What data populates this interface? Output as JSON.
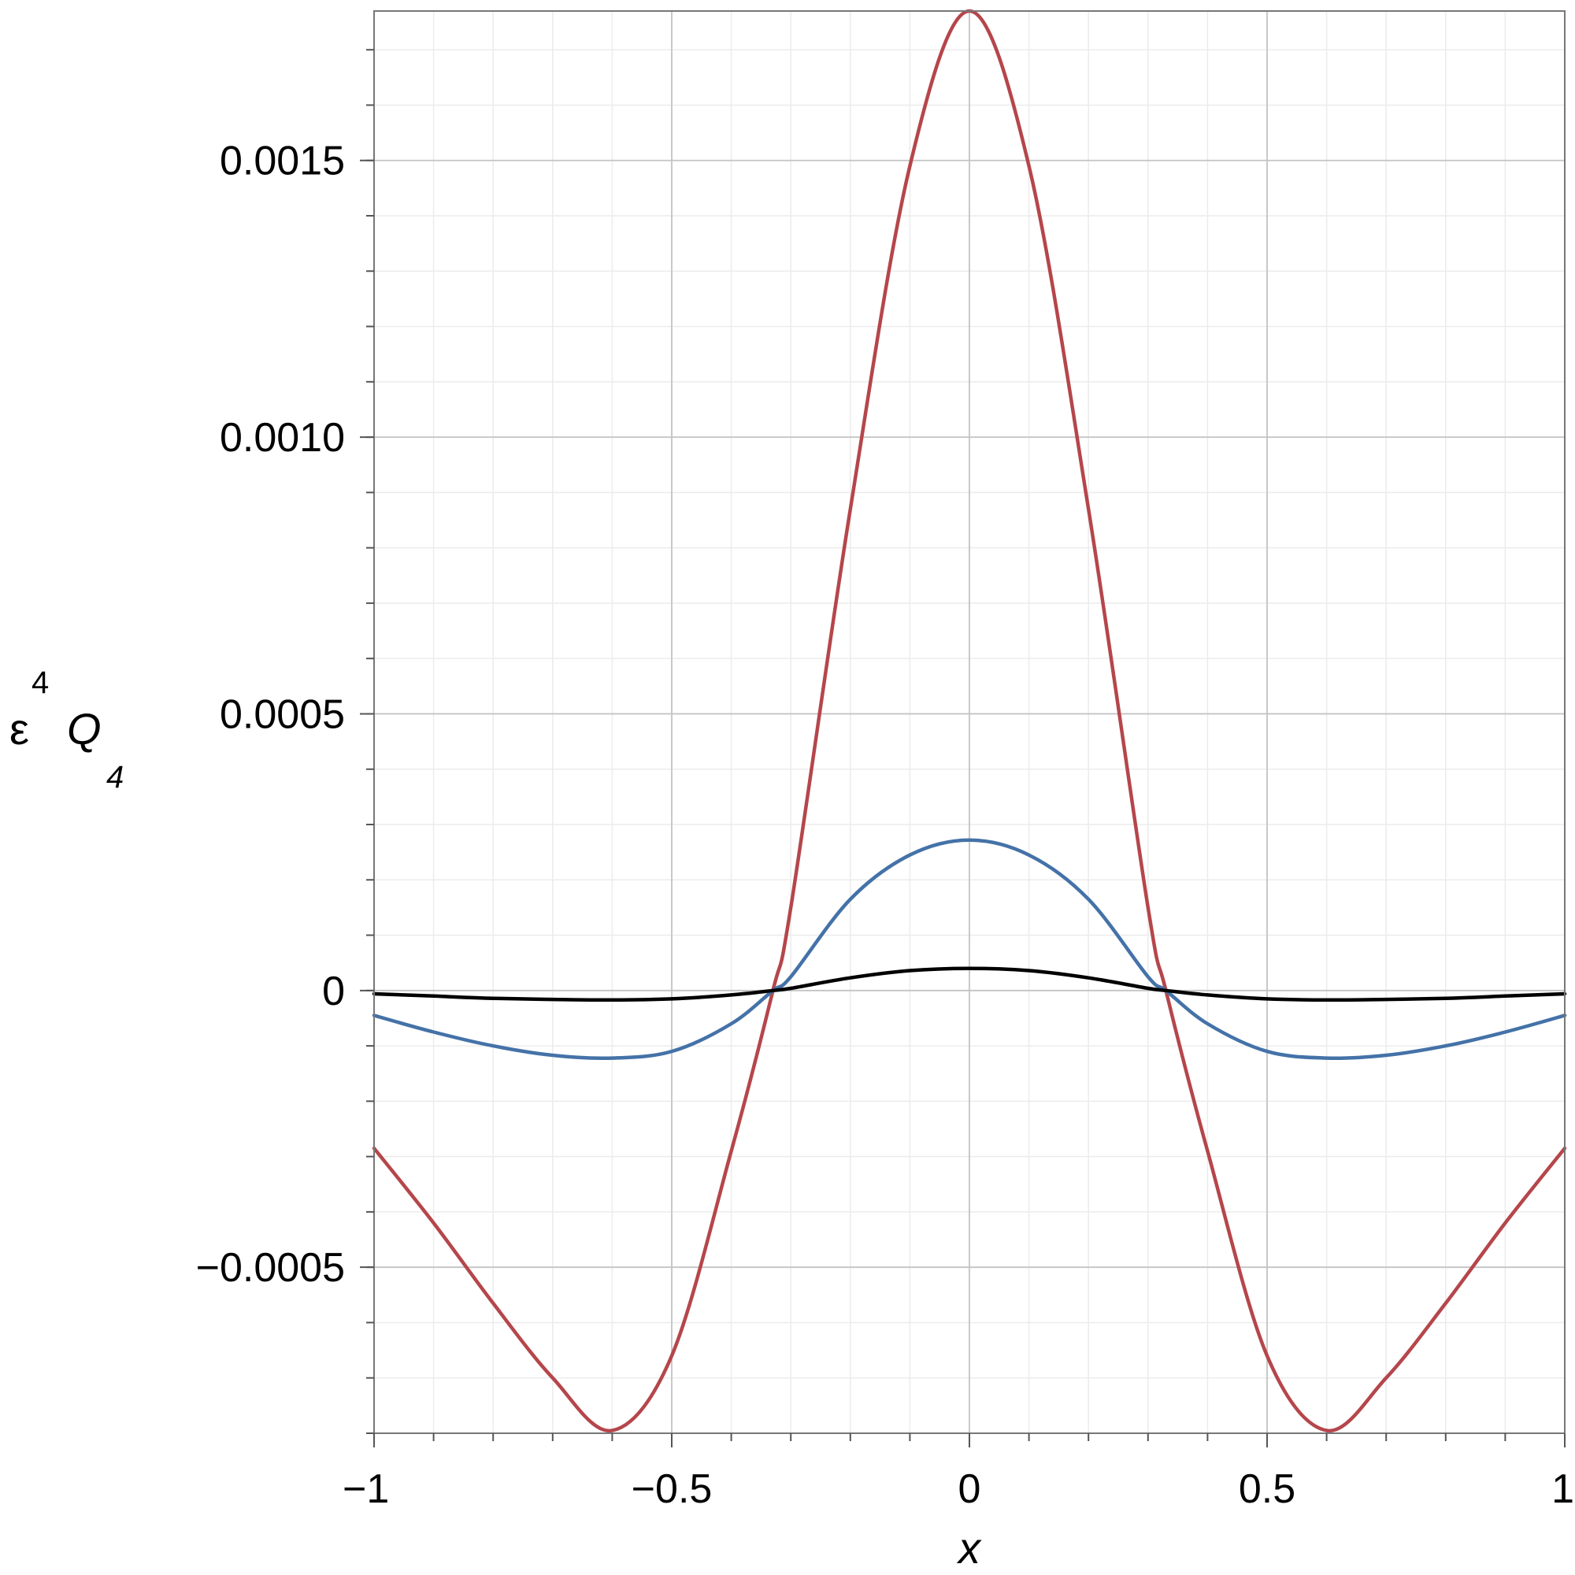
{
  "chart_data": {
    "type": "line",
    "xlabel": "x",
    "ylabel": {
      "base": "ε",
      "base_superscript": "4",
      "symbol": "Q",
      "symbol_subscript": "4"
    },
    "xlim": [
      -1,
      1
    ],
    "ylim": [
      -0.0008,
      0.00177
    ],
    "x_ticks": [
      -1,
      -0.5,
      0,
      0.5,
      1
    ],
    "x_tick_labels": [
      "−1",
      "−0.5",
      "0",
      "0.5",
      "1"
    ],
    "y_ticks": [
      -0.0005,
      0,
      0.0005,
      0.001,
      0.0015
    ],
    "y_tick_labels": [
      "−0.0005",
      "0",
      "0.0005",
      "0.0010",
      "0.0015"
    ],
    "grid": true,
    "legend": "none",
    "x": [
      -1,
      -0.9,
      -0.8,
      -0.7,
      -0.6,
      -0.5,
      -0.4,
      -0.33,
      -0.3,
      -0.2,
      -0.1,
      0,
      0.1,
      0.2,
      0.3,
      0.33,
      0.4,
      0.5,
      0.6,
      0.7,
      0.8,
      0.9,
      1
    ],
    "series": [
      {
        "color": "#b5464b",
        "values": [
          -0.000285,
          -0.00042,
          -0.000565,
          -0.0007,
          -0.000795,
          -0.00066,
          -0.00029,
          0.0,
          0.00015,
          0.00087,
          0.00149,
          0.00177,
          0.00149,
          0.00087,
          0.00015,
          0.0,
          -0.00029,
          -0.00066,
          -0.000795,
          -0.0007,
          -0.000565,
          -0.00042,
          -0.000285
        ]
      },
      {
        "color": "#4472a8",
        "values": [
          -4.5e-05,
          -7.5e-05,
          -0.0001,
          -0.000117,
          -0.000122,
          -0.00011,
          -6e-05,
          0.0,
          2.5e-05,
          0.000165,
          0.000245,
          0.000272,
          0.000245,
          0.000165,
          2.5e-05,
          0.0,
          -6e-05,
          -0.00011,
          -0.000122,
          -0.000117,
          -0.0001,
          -7.5e-05,
          -4.5e-05
        ]
      },
      {
        "color": "#000000",
        "values": [
          -6e-06,
          -1e-05,
          -1.4e-05,
          -1.6e-05,
          -1.7e-05,
          -1.5e-05,
          -8e-06,
          0.0,
          4e-06,
          2.3e-05,
          3.6e-05,
          4e-05,
          3.6e-05,
          2.3e-05,
          4e-06,
          0.0,
          -8e-06,
          -1.5e-05,
          -1.7e-05,
          -1.6e-05,
          -1.4e-05,
          -1e-05,
          -6e-06
        ]
      }
    ]
  }
}
